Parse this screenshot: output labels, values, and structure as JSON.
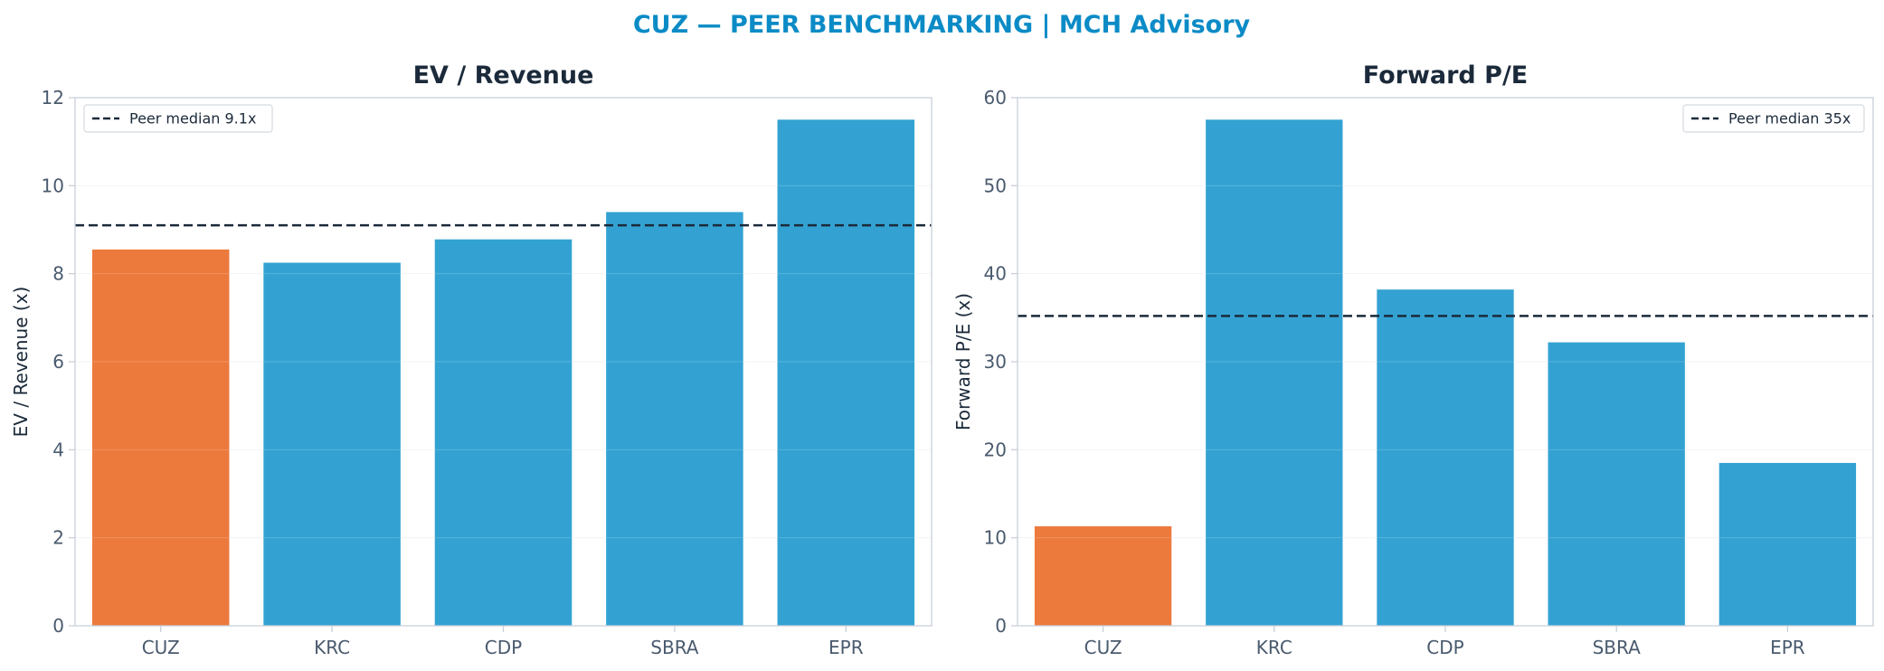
{
  "title": "CUZ — PEER BENCHMARKING | MCH Advisory",
  "colors": {
    "title": "#0b8bc6",
    "highlight": "#ec7a3d",
    "peer": "#33a2d2",
    "median_line": "#1b2a3a",
    "axis": "#c8d0da",
    "grid": "#eef1f4"
  },
  "chart_data": [
    {
      "type": "bar",
      "title": "EV / Revenue",
      "ylabel": "EV / Revenue (x)",
      "categories": [
        "CUZ",
        "KRC",
        "CDP",
        "SBRA",
        "EPR"
      ],
      "values": [
        8.55,
        8.25,
        8.78,
        9.4,
        11.5
      ],
      "highlight": "CUZ",
      "ylim": [
        0,
        12
      ],
      "yticks": [
        0,
        2,
        4,
        6,
        8,
        10,
        12
      ],
      "reference_line": {
        "value": 9.1,
        "label": "Peer median 9.1x",
        "style": "dashed"
      },
      "legend_position": "upper-left",
      "grid": true
    },
    {
      "type": "bar",
      "title": "Forward P/E",
      "ylabel": "Forward P/E (x)",
      "categories": [
        "CUZ",
        "KRC",
        "CDP",
        "SBRA",
        "EPR"
      ],
      "values": [
        11.3,
        57.5,
        38.2,
        32.2,
        18.5
      ],
      "highlight": "CUZ",
      "ylim": [
        0,
        60
      ],
      "yticks": [
        0,
        10,
        20,
        30,
        40,
        50,
        60
      ],
      "reference_line": {
        "value": 35.2,
        "label": "Peer median 35x",
        "style": "dashed"
      },
      "legend_position": "upper-right",
      "grid": true
    }
  ]
}
